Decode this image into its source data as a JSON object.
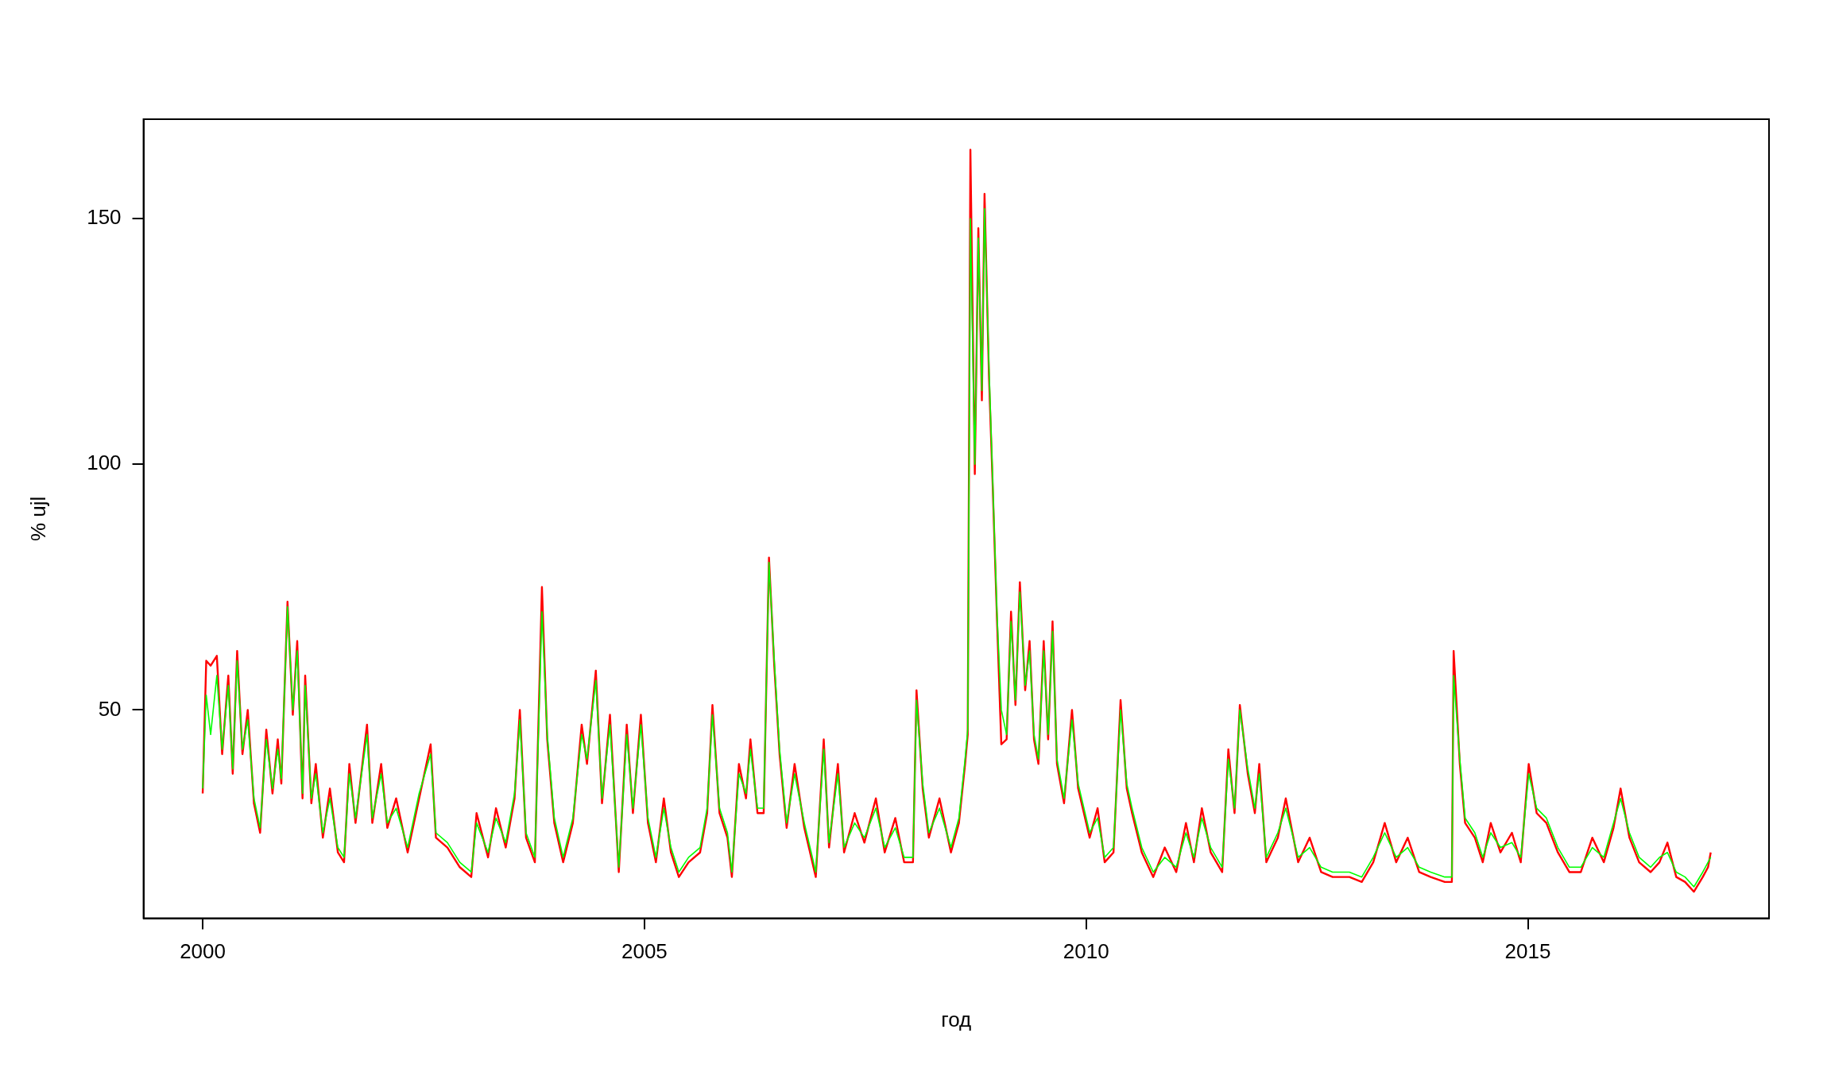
{
  "chart_data": {
    "type": "line",
    "xlabel": "год",
    "ylabel": "% ujl",
    "xlim": [
      1999.33,
      2017.73
    ],
    "ylim": [
      7.6,
      170.2
    ],
    "xticks": [
      2000,
      2005,
      2010,
      2015
    ],
    "yticks": [
      50,
      100,
      150
    ],
    "x": [
      2000.0,
      2000.04,
      2000.09,
      2000.16,
      2000.22,
      2000.29,
      2000.34,
      2000.39,
      2000.45,
      2000.51,
      2000.58,
      2000.65,
      2000.72,
      2000.79,
      2000.85,
      2000.89,
      2000.96,
      2001.02,
      2001.07,
      2001.13,
      2001.16,
      2001.23,
      2001.28,
      2001.36,
      2001.44,
      2001.53,
      2001.6,
      2001.66,
      2001.73,
      2001.86,
      2001.92,
      2002.02,
      2002.09,
      2002.19,
      2002.32,
      2002.45,
      2002.58,
      2002.64,
      2002.77,
      2002.91,
      2003.04,
      2003.1,
      2003.23,
      2003.32,
      2003.43,
      2003.53,
      2003.59,
      2003.66,
      2003.76,
      2003.84,
      2003.9,
      2003.98,
      2004.08,
      2004.19,
      2004.29,
      2004.35,
      2004.45,
      2004.52,
      2004.61,
      2004.71,
      2004.8,
      2004.87,
      2004.96,
      2005.04,
      2005.13,
      2005.22,
      2005.3,
      2005.39,
      2005.5,
      2005.63,
      2005.71,
      2005.77,
      2005.85,
      2005.94,
      2005.99,
      2006.07,
      2006.15,
      2006.2,
      2006.28,
      2006.35,
      2006.41,
      2006.47,
      2006.53,
      2006.61,
      2006.7,
      2006.81,
      2006.94,
      2007.03,
      2007.09,
      2007.19,
      2007.26,
      2007.38,
      2007.49,
      2007.62,
      2007.72,
      2007.84,
      2007.94,
      2008.04,
      2008.08,
      2008.15,
      2008.22,
      2008.34,
      2008.47,
      2008.56,
      2008.63,
      2008.66,
      2008.69,
      2008.74,
      2008.78,
      2008.82,
      2008.85,
      2008.9,
      2008.94,
      2008.99,
      2009.04,
      2009.1,
      2009.15,
      2009.2,
      2009.25,
      2009.31,
      2009.36,
      2009.41,
      2009.46,
      2009.52,
      2009.57,
      2009.62,
      2009.67,
      2009.75,
      2009.84,
      2009.91,
      2010.04,
      2010.13,
      2010.21,
      2010.31,
      2010.39,
      2010.46,
      2010.52,
      2010.63,
      2010.76,
      2010.89,
      2011.02,
      2011.13,
      2011.22,
      2011.31,
      2011.41,
      2011.54,
      2011.61,
      2011.68,
      2011.74,
      2011.83,
      2011.91,
      2011.96,
      2012.04,
      2012.17,
      2012.26,
      2012.4,
      2012.53,
      2012.66,
      2012.79,
      2012.98,
      2013.12,
      2013.25,
      2013.38,
      2013.51,
      2013.64,
      2013.77,
      2013.9,
      2014.06,
      2014.14,
      2014.16,
      2014.23,
      2014.29,
      2014.4,
      2014.49,
      2014.58,
      2014.69,
      2014.82,
      2014.92,
      2015.01,
      2015.1,
      2015.21,
      2015.34,
      2015.47,
      2015.6,
      2015.73,
      2015.86,
      2015.97,
      2016.05,
      2016.15,
      2016.26,
      2016.39,
      2016.49,
      2016.58,
      2016.68,
      2016.78,
      2016.88,
      2016.98,
      2017.04,
      2017.07
    ],
    "series": [
      {
        "color": "#ff0000",
        "values": [
          33,
          60,
          59,
          61,
          41,
          57,
          37,
          62,
          41,
          50,
          31,
          25,
          46,
          33,
          44,
          35,
          72,
          49,
          64,
          32,
          57,
          31,
          39,
          24,
          34,
          21,
          19,
          39,
          27,
          47,
          27,
          39,
          26,
          32,
          21,
          32,
          43,
          24,
          22,
          18,
          16,
          29,
          20,
          30,
          22,
          32,
          50,
          24,
          19,
          75,
          44,
          27,
          19,
          27,
          47,
          39,
          58,
          31,
          49,
          17,
          47,
          29,
          49,
          27,
          19,
          32,
          21,
          16,
          19,
          21,
          29,
          51,
          29,
          24,
          16,
          39,
          32,
          44,
          29,
          29,
          81,
          59,
          41,
          26,
          39,
          26,
          16,
          44,
          22,
          39,
          21,
          29,
          23,
          32,
          21,
          28,
          19,
          19,
          54,
          34,
          24,
          32,
          21,
          27,
          39,
          45,
          164,
          98,
          148,
          113,
          155,
          118,
          97,
          69,
          43,
          44,
          70,
          51,
          76,
          54,
          64,
          44,
          39,
          64,
          44,
          68,
          39,
          31,
          50,
          34,
          24,
          30,
          19,
          21,
          52,
          34,
          29,
          21,
          16,
          22,
          17,
          27,
          19,
          30,
          21,
          17,
          42,
          29,
          51,
          37,
          29,
          39,
          19,
          24,
          32,
          19,
          24,
          17,
          16,
          16,
          15,
          19,
          27,
          19,
          24,
          17,
          16,
          15,
          15,
          62,
          39,
          27,
          24,
          19,
          27,
          21,
          25,
          19,
          39,
          29,
          27,
          21,
          17,
          17,
          24,
          19,
          26,
          34,
          24,
          19,
          17,
          19,
          23,
          16,
          15,
          13,
          16,
          18,
          21
        ]
      },
      {
        "color": "#00ff00",
        "values": [
          34,
          53,
          45,
          57,
          42,
          55,
          38,
          60,
          42,
          48,
          32,
          26,
          44,
          34,
          42,
          36,
          71,
          50,
          62,
          33,
          55,
          32,
          37,
          25,
          32,
          22,
          20,
          37,
          28,
          45,
          28,
          37,
          27,
          30,
          22,
          33,
          41,
          25,
          23,
          19,
          17,
          27,
          21,
          28,
          23,
          33,
          48,
          25,
          20,
          70,
          45,
          28,
          20,
          28,
          45,
          40,
          56,
          32,
          47,
          18,
          45,
          30,
          47,
          28,
          20,
          30,
          22,
          17,
          20,
          22,
          30,
          49,
          30,
          25,
          17,
          37,
          33,
          42,
          30,
          30,
          80,
          60,
          42,
          27,
          37,
          27,
          17,
          42,
          23,
          37,
          22,
          27,
          24,
          30,
          22,
          26,
          20,
          20,
          52,
          35,
          25,
          30,
          22,
          28,
          40,
          46,
          150,
          100,
          146,
          115,
          152,
          120,
          98,
          70,
          50,
          45,
          68,
          52,
          74,
          55,
          62,
          45,
          40,
          62,
          45,
          66,
          40,
          32,
          48,
          35,
          25,
          28,
          20,
          22,
          50,
          35,
          30,
          22,
          17,
          20,
          18,
          25,
          20,
          28,
          22,
          18,
          40,
          30,
          50,
          38,
          30,
          37,
          20,
          25,
          30,
          20,
          22,
          18,
          17,
          17,
          16,
          20,
          25,
          20,
          22,
          18,
          17,
          16,
          16,
          57,
          40,
          28,
          25,
          20,
          25,
          22,
          23,
          20,
          37,
          30,
          28,
          22,
          18,
          18,
          22,
          20,
          27,
          32,
          25,
          20,
          18,
          20,
          21,
          17,
          16,
          14,
          17,
          19,
          20
        ]
      }
    ]
  }
}
